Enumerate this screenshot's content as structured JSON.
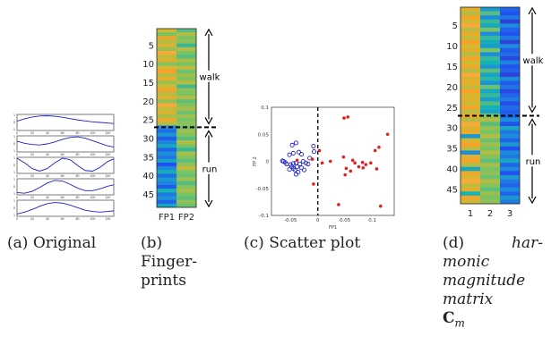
{
  "captions": {
    "a": {
      "tag": "(a)",
      "text": "Original"
    },
    "b": {
      "tag": "(b)",
      "text_l1": "Finger-",
      "text_l2": "prints"
    },
    "c": {
      "tag": "(c)",
      "text": "Scatter plot"
    },
    "d": {
      "tag": "(d)",
      "l1": "har-",
      "l2": "monic",
      "l3": "magnitude",
      "l4": "matrix",
      "l5": "C",
      "l5_sub": "m"
    }
  },
  "chart_data": [
    {
      "panel": "a",
      "type": "line",
      "subplots": [
        {
          "x": [
            0,
            10,
            20,
            30,
            40,
            50,
            60,
            70,
            80,
            90,
            100,
            110,
            120,
            128
          ],
          "y": [
            0.1,
            0.28,
            0.42,
            0.5,
            0.52,
            0.48,
            0.4,
            0.3,
            0.2,
            0.12,
            0.05,
            0.0,
            -0.05,
            -0.08
          ]
        },
        {
          "x": [
            0,
            10,
            20,
            30,
            40,
            50,
            60,
            70,
            80,
            90,
            100,
            110,
            120,
            128
          ],
          "y": [
            0.2,
            0.05,
            -0.05,
            -0.08,
            0.0,
            0.15,
            0.35,
            0.5,
            0.55,
            0.45,
            0.25,
            0.05,
            -0.15,
            -0.25
          ]
        },
        {
          "x": [
            0,
            10,
            20,
            30,
            40,
            50,
            60,
            70,
            80,
            90,
            100,
            110,
            120,
            128
          ],
          "y": [
            0.55,
            0.2,
            -0.25,
            -0.45,
            -0.25,
            0.2,
            0.55,
            0.45,
            0.0,
            -0.4,
            -0.45,
            -0.15,
            0.3,
            0.5
          ]
        },
        {
          "x": [
            0,
            10,
            20,
            30,
            40,
            50,
            60,
            70,
            80,
            90,
            100,
            110,
            120,
            128
          ],
          "y": [
            -0.45,
            -0.5,
            -0.35,
            -0.05,
            0.3,
            0.5,
            0.45,
            0.2,
            -0.1,
            -0.3,
            -0.3,
            -0.15,
            0.05,
            0.15
          ]
        },
        {
          "x": [
            0,
            10,
            20,
            30,
            40,
            50,
            60,
            70,
            80,
            90,
            100,
            110,
            120,
            128
          ],
          "y": [
            -0.45,
            -0.3,
            -0.1,
            0.15,
            0.35,
            0.45,
            0.4,
            0.25,
            0.05,
            -0.15,
            -0.25,
            -0.3,
            -0.25,
            -0.2
          ]
        }
      ],
      "x_ticks": [
        "0",
        "20",
        "40",
        "60",
        "80",
        "100",
        "120"
      ],
      "y_ticks_a": [
        "1",
        "0",
        "-1"
      ],
      "y_ticks_b": [
        "1",
        "0",
        "1"
      ],
      "color": "#1f1fd0"
    },
    {
      "panel": "b",
      "type": "heatmap",
      "columns": [
        "FP1",
        "FP2"
      ],
      "rows": 48,
      "y_ticks": [
        "5",
        "10",
        "15",
        "20",
        "25",
        "30",
        "35",
        "40",
        "45"
      ],
      "boundary_row": 26.5,
      "labels": {
        "walk": "walk",
        "run": "run"
      },
      "walk_values": [
        [
          0.75,
          0.55
        ],
        [
          0.6,
          0.7
        ],
        [
          0.85,
          0.6
        ],
        [
          0.7,
          0.65
        ],
        [
          0.78,
          0.5
        ],
        [
          0.65,
          0.7
        ],
        [
          0.9,
          0.6
        ],
        [
          0.72,
          0.55
        ],
        [
          0.8,
          0.68
        ],
        [
          0.62,
          0.6
        ],
        [
          0.76,
          0.72
        ],
        [
          0.88,
          0.58
        ],
        [
          0.7,
          0.66
        ],
        [
          0.82,
          0.62
        ],
        [
          0.66,
          0.7
        ],
        [
          0.74,
          0.52
        ],
        [
          0.86,
          0.64
        ],
        [
          0.7,
          0.6
        ],
        [
          0.8,
          0.7
        ],
        [
          0.64,
          0.56
        ],
        [
          0.9,
          0.62
        ],
        [
          0.72,
          0.68
        ],
        [
          0.78,
          0.58
        ],
        [
          0.68,
          0.66
        ],
        [
          0.84,
          0.6
        ],
        [
          0.7,
          0.64
        ]
      ],
      "run_values": [
        [
          0.3,
          0.58
        ],
        [
          0.22,
          0.66
        ],
        [
          0.35,
          0.62
        ],
        [
          0.18,
          0.55
        ],
        [
          0.28,
          0.7
        ],
        [
          0.4,
          0.6
        ],
        [
          0.2,
          0.5
        ],
        [
          0.32,
          0.68
        ],
        [
          0.25,
          0.62
        ],
        [
          0.38,
          0.56
        ],
        [
          0.15,
          0.64
        ],
        [
          0.3,
          0.72
        ],
        [
          0.42,
          0.6
        ],
        [
          0.22,
          0.58
        ],
        [
          0.35,
          0.66
        ],
        [
          0.28,
          0.54
        ],
        [
          0.18,
          0.62
        ],
        [
          0.45,
          0.68
        ],
        [
          0.25,
          0.6
        ],
        [
          0.33,
          0.56
        ],
        [
          0.2,
          0.64
        ],
        [
          0.4,
          0.58
        ]
      ]
    },
    {
      "panel": "c",
      "type": "scatter",
      "xlabel": "FP1",
      "ylabel": "FP 2",
      "xlim": [
        -0.085,
        0.14
      ],
      "ylim": [
        -0.1,
        0.1
      ],
      "x_ticks": [
        {
          "v": -0.05,
          "t": "-0.05"
        },
        {
          "v": 0,
          "t": "0"
        },
        {
          "v": 0.05,
          "t": "0.05"
        },
        {
          "v": 0.1,
          "t": "0.1"
        }
      ],
      "y_ticks": [
        {
          "v": 0.1,
          "t": "0.1"
        },
        {
          "v": 0.05,
          "t": "0.05"
        },
        {
          "v": 0,
          "t": "0"
        },
        {
          "v": -0.05,
          "t": "-0.05"
        },
        {
          "v": -0.1,
          "t": "-0.1"
        }
      ],
      "series": [
        {
          "marker": "circle",
          "color": "#2222cc",
          "points": [
            [
              -0.04,
              0.034
            ],
            [
              -0.047,
              0.03
            ],
            [
              -0.045,
              0.015
            ],
            [
              -0.035,
              0.017
            ],
            [
              -0.03,
              0.013
            ],
            [
              -0.008,
              0.028
            ],
            [
              -0.007,
              0.018
            ],
            [
              -0.052,
              0.012
            ],
            [
              -0.045,
              -0.004
            ],
            [
              -0.04,
              -0.003
            ],
            [
              -0.022,
              -0.003
            ],
            [
              -0.018,
              -0.005
            ],
            [
              -0.063,
              0.0
            ],
            [
              -0.06,
              -0.002
            ],
            [
              -0.065,
              0.001
            ],
            [
              -0.057,
              -0.005
            ],
            [
              -0.048,
              -0.01
            ],
            [
              -0.045,
              -0.013
            ],
            [
              -0.042,
              -0.016
            ],
            [
              -0.038,
              -0.01
            ],
            [
              -0.033,
              -0.005
            ],
            [
              -0.03,
              -0.012
            ],
            [
              -0.025,
              -0.016
            ],
            [
              -0.036,
              -0.02
            ],
            [
              -0.04,
              -0.024
            ],
            [
              -0.052,
              -0.015
            ],
            [
              -0.05,
              -0.006
            ],
            [
              -0.027,
              0.0
            ],
            [
              -0.015,
              0.006
            ]
          ]
        },
        {
          "marker": "dot",
          "color": "#e02020",
          "points": [
            [
              -0.038,
              0.002
            ],
            [
              -0.01,
              0.004
            ],
            [
              -0.008,
              -0.042
            ],
            [
              0.003,
              0.02
            ],
            [
              0.008,
              -0.003
            ],
            [
              0.023,
              0.0
            ],
            [
              0.038,
              -0.08
            ],
            [
              0.048,
              0.08
            ],
            [
              0.055,
              0.082
            ],
            [
              0.047,
              0.008
            ],
            [
              0.052,
              -0.013
            ],
            [
              0.06,
              -0.018
            ],
            [
              0.068,
              -0.003
            ],
            [
              0.075,
              -0.01
            ],
            [
              0.083,
              -0.012
            ],
            [
              0.088,
              -0.006
            ],
            [
              0.097,
              -0.003
            ],
            [
              0.105,
              0.02
            ],
            [
              0.112,
              0.026
            ],
            [
              0.128,
              0.05
            ],
            [
              0.108,
              -0.014
            ],
            [
              0.115,
              -0.083
            ],
            [
              0.05,
              -0.025
            ],
            [
              0.064,
              0.002
            ],
            [
              0.082,
              -0.002
            ]
          ]
        }
      ]
    },
    {
      "panel": "d",
      "type": "heatmap",
      "columns": [
        "1",
        "2",
        "3"
      ],
      "rows": 48,
      "y_ticks": [
        "5",
        "10",
        "15",
        "20",
        "25",
        "30",
        "35",
        "40",
        "45"
      ],
      "boundary_row": 26.5,
      "labels": {
        "walk": "walk",
        "run": "run"
      },
      "walk_values": [
        [
          0.8,
          0.35,
          0.2
        ],
        [
          0.7,
          0.55,
          0.15
        ],
        [
          0.85,
          0.3,
          0.25
        ],
        [
          0.75,
          0.5,
          0.1
        ],
        [
          0.9,
          0.4,
          0.3
        ],
        [
          0.7,
          0.6,
          0.2
        ],
        [
          0.82,
          0.3,
          0.15
        ],
        [
          0.72,
          0.5,
          0.25
        ],
        [
          0.88,
          0.42,
          0.1
        ],
        [
          0.76,
          0.36,
          0.3
        ],
        [
          0.8,
          0.6,
          0.18
        ],
        [
          0.7,
          0.3,
          0.22
        ],
        [
          0.86,
          0.5,
          0.12
        ],
        [
          0.74,
          0.45,
          0.28
        ],
        [
          0.84,
          0.34,
          0.16
        ],
        [
          0.7,
          0.56,
          0.2
        ],
        [
          0.9,
          0.38,
          0.1
        ],
        [
          0.78,
          0.48,
          0.3
        ],
        [
          0.82,
          0.32,
          0.18
        ],
        [
          0.72,
          0.58,
          0.24
        ],
        [
          0.88,
          0.4,
          0.12
        ],
        [
          0.76,
          0.5,
          0.2
        ],
        [
          0.8,
          0.36,
          0.26
        ],
        [
          0.74,
          0.54,
          0.14
        ],
        [
          0.86,
          0.44,
          0.22
        ],
        [
          0.7,
          0.38,
          0.18
        ]
      ],
      "run_values": [
        [
          0.85,
          0.6,
          0.2
        ],
        [
          0.7,
          0.7,
          0.3
        ],
        [
          0.9,
          0.55,
          0.15
        ],
        [
          0.78,
          0.65,
          0.4
        ],
        [
          0.82,
          0.6,
          0.25
        ],
        [
          0.35,
          0.7,
          0.3
        ],
        [
          0.75,
          0.58,
          0.2
        ],
        [
          0.88,
          0.66,
          0.35
        ],
        [
          0.72,
          0.6,
          0.15
        ],
        [
          0.3,
          0.7,
          0.3
        ],
        [
          0.8,
          0.62,
          0.25
        ],
        [
          0.86,
          0.56,
          0.4
        ],
        [
          0.7,
          0.68,
          0.2
        ],
        [
          0.4,
          0.6,
          0.3
        ],
        [
          0.84,
          0.64,
          0.15
        ],
        [
          0.76,
          0.58,
          0.35
        ],
        [
          0.9,
          0.7,
          0.25
        ],
        [
          0.72,
          0.62,
          0.2
        ],
        [
          0.8,
          0.56,
          0.3
        ],
        [
          0.45,
          0.66,
          0.2
        ],
        [
          0.86,
          0.6,
          0.35
        ],
        [
          0.74,
          0.64,
          0.25
        ]
      ]
    }
  ]
}
